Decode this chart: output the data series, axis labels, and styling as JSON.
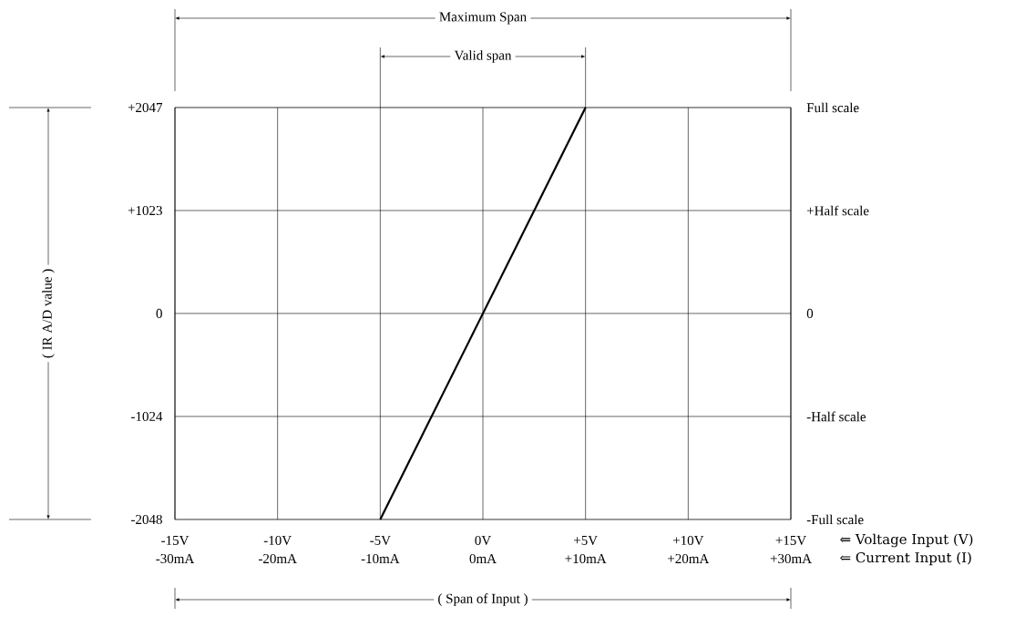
{
  "chart_data": {
    "type": "line",
    "xlabel": "⇐ Voltage Input (V)",
    "x2label": "⇐ Current Input (I)",
    "annotations": [
      "Maximum Span",
      "Valid span",
      "( Span of Input )",
      "( IR A/D value )",
      "Full scale",
      "-Full scale"
    ],
    "ref_lines": [
      {
        "axis": "y",
        "value": 1023,
        "label": "+Half scale"
      },
      {
        "axis": "y",
        "value": 0,
        "label": "0"
      },
      {
        "axis": "y",
        "value": -1024,
        "label": "-Half scale"
      }
    ],
    "series": [
      {
        "x": [
          -5,
          5
        ],
        "values": [
          -2048,
          2047
        ],
        "color": "#000000"
      }
    ],
    "xlim": [
      -15,
      15
    ],
    "xticks": [
      {
        "value": -15,
        "label": "-15V"
      },
      {
        "value": -10,
        "label": "-10V"
      },
      {
        "value": -5,
        "label": "-5V"
      },
      {
        "value": 0,
        "label": "0V"
      },
      {
        "value": 5,
        "label": "+5V"
      },
      {
        "value": 10,
        "label": "+10V"
      },
      {
        "value": 15,
        "label": "+15V"
      }
    ],
    "x2lim": [
      -30,
      30
    ],
    "x2ticks": [
      {
        "value": -30,
        "label": "-30mA"
      },
      {
        "value": -20,
        "label": "-20mA"
      },
      {
        "value": -10,
        "label": "-10mA"
      },
      {
        "value": 0,
        "label": "0mA"
      },
      {
        "value": 10,
        "label": "+10mA"
      },
      {
        "value": 20,
        "label": "+20mA"
      },
      {
        "value": 30,
        "label": "+30mA"
      }
    ],
    "ylim": [
      -2048,
      2047
    ],
    "yticks": [
      {
        "value": -2048,
        "label": "-2048"
      },
      {
        "value": -1024,
        "label": "-1024"
      },
      0,
      {
        "value": 1023,
        "label": "+1023"
      },
      {
        "value": 2047,
        "label": "+2047"
      }
    ],
    "grid": "x"
  }
}
